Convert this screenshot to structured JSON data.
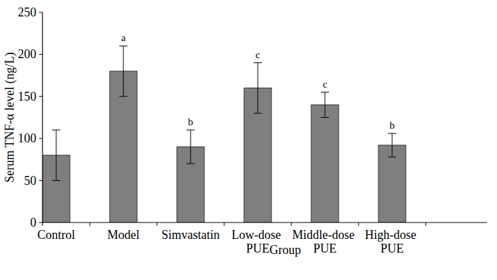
{
  "chart_data": {
    "type": "bar",
    "categories": [
      "Control",
      "Model",
      "Simvastatin",
      "Low-dose PUE",
      "Middle-dose PUE",
      "High-dose PUE"
    ],
    "values": [
      80,
      180,
      90,
      160,
      140,
      92
    ],
    "errors": [
      30,
      30,
      20,
      30,
      15,
      14
    ],
    "annotations": [
      null,
      "a",
      "b",
      "c",
      "c",
      "b"
    ],
    "color": "#7f7f7f",
    "x_label": "Group",
    "y_label": "Serum TNF-α level (ng/L)",
    "ylim": [
      0,
      250
    ],
    "yticks": [
      0,
      50,
      100,
      150,
      200,
      250
    ],
    "grid": false
  }
}
